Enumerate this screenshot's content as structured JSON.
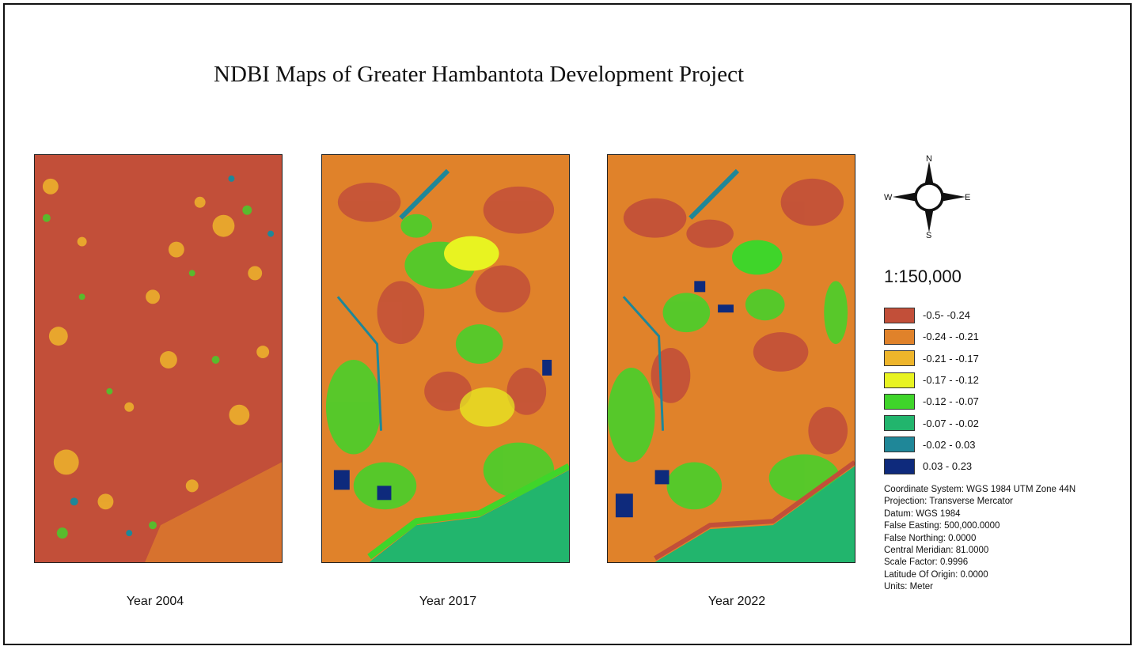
{
  "title": "NDBI Maps of Greater Hambantota Development Project",
  "maps": [
    {
      "year_label": "Year 2004",
      "dominant_class": "-0.5- -0.24"
    },
    {
      "year_label": "Year 2017",
      "dominant_class": "-0.24 - -0.21"
    },
    {
      "year_label": "Year 2022",
      "dominant_class": "-0.24 - -0.21"
    }
  ],
  "compass": {
    "n": "N",
    "s": "S",
    "e": "E",
    "w": "W"
  },
  "scale": "1:150,000",
  "legend": [
    {
      "label": "-0.5- -0.24",
      "color": "#c24f39"
    },
    {
      "label": "-0.24 - -0.21",
      "color": "#e0822a"
    },
    {
      "label": "-0.21 - -0.17",
      "color": "#eeb52b"
    },
    {
      "label": "-0.17 - -0.12",
      "color": "#e8f321"
    },
    {
      "label": "-0.12 - -0.07",
      "color": "#3fd52a"
    },
    {
      "label": "-0.07 - -0.02",
      "color": "#22b56d"
    },
    {
      "label": "-0.02 - 0.03",
      "color": "#1f8798"
    },
    {
      "label": "0.03 - 0.23",
      "color": "#0e2a7c"
    }
  ],
  "metadata": [
    "Coordinate System: WGS 1984 UTM Zone 44N",
    "Projection: Transverse Mercator",
    "Datum: WGS 1984",
    "False Easting: 500,000.0000",
    "False Northing: 0.0000",
    "Central Meridian: 81.0000",
    "Scale Factor: 0.9996",
    "Latitude Of Origin: 0.0000",
    "Units: Meter"
  ]
}
